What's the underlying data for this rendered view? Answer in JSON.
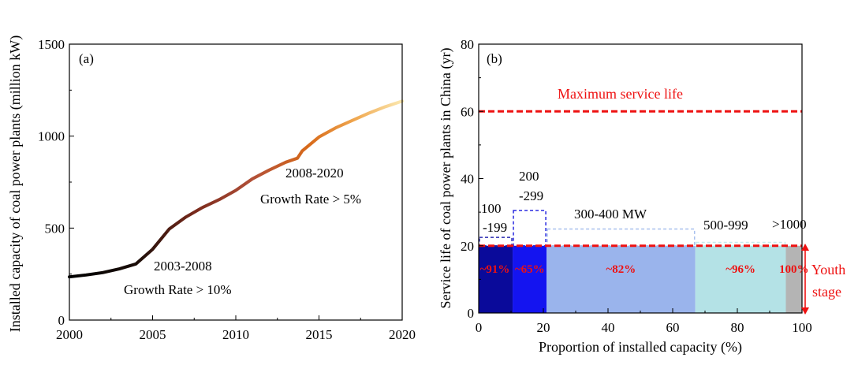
{
  "chart_data": [
    {
      "panel_label": "(a)",
      "type": "line",
      "ylabel": "Installed capacity of coal power plants (million kW)",
      "xlim": [
        2000,
        2020
      ],
      "ylim": [
        0,
        1500
      ],
      "xticks": [
        2000,
        2005,
        2010,
        2015,
        2020
      ],
      "yticks": [
        0,
        500,
        1000,
        1500
      ],
      "x": [
        2000,
        2001,
        2002,
        2003,
        2004,
        2005,
        2006,
        2007,
        2008,
        2009,
        2010,
        2011,
        2012,
        2013,
        2013.7,
        2014,
        2015,
        2016,
        2017,
        2018,
        2019,
        2020
      ],
      "y": [
        235,
        245,
        258,
        278,
        305,
        385,
        495,
        560,
        612,
        655,
        705,
        768,
        815,
        858,
        880,
        920,
        995,
        1045,
        1085,
        1125,
        1160,
        1190
      ],
      "annotations": [
        {
          "id": "ann1",
          "lines": [
            "2003-2008",
            "Growth Rate > 10%"
          ]
        },
        {
          "id": "ann2",
          "lines": [
            "2008-2020",
            "Growth Rate > 5%"
          ]
        }
      ]
    },
    {
      "panel_label": "(b)",
      "type": "bar",
      "xlabel": "Proportion of installed capacity (%)",
      "ylabel": "Service life of coal power plants in China (yr)",
      "xlim": [
        0,
        100
      ],
      "ylim": [
        0,
        80
      ],
      "xticks": [
        0,
        20,
        40,
        60,
        80,
        100
      ],
      "yticks": [
        0,
        20,
        40,
        60,
        80
      ],
      "max_service_life": 60,
      "max_service_label": "Maximum service life",
      "youth_threshold": 20,
      "youth_label": [
        "Youth",
        "stage"
      ],
      "groups": [
        {
          "lines": [
            "100",
            "-199"
          ],
          "x0": 0,
          "x1": 10.5,
          "life": 22.5,
          "color": "#0a0a9a",
          "outline": "#2a2ab0",
          "pct": "~91%",
          "pct_x": 5
        },
        {
          "lines": [
            "200",
            "-299"
          ],
          "x0": 10.5,
          "x1": 21,
          "life": 30.5,
          "color": "#1414f0",
          "outline": "#2a2ae0",
          "pct": "~65%",
          "pct_x": 15.8
        },
        {
          "lines": [
            "300-400 MW"
          ],
          "x0": 21,
          "x1": 67,
          "life": 25,
          "color": "#9ab4ec",
          "outline": "#a8c0ee",
          "pct": "~82%",
          "pct_x": 44
        },
        {
          "lines": [
            "500-999"
          ],
          "x0": 67,
          "x1": 95,
          "life": 21,
          "color": "#b4e2e6",
          "outline": "#c6ecef",
          "pct": "~96%",
          "pct_x": 81
        },
        {
          "lines": [
            ">1000"
          ],
          "x0": 95,
          "x1": 100,
          "life": 20,
          "color": "#b4b4b4",
          "outline": "#b4b4b4",
          "pct": "100%",
          "pct_x": 97.5
        }
      ],
      "colors": {
        "highlight": "#ee1111"
      }
    }
  ]
}
